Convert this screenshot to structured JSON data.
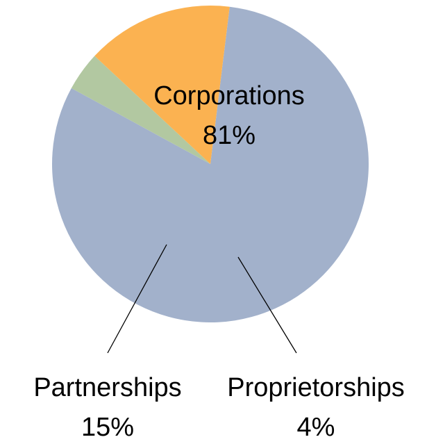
{
  "chart_data": {
    "type": "pie",
    "slices": [
      {
        "label": "Corporations",
        "value": 81,
        "pct_label": "81%",
        "color": "#a2b1cb"
      },
      {
        "label": "Proprietorships",
        "value": 4,
        "pct_label": "4%",
        "color": "#b2c8a1"
      },
      {
        "label": "Partnerships",
        "value": 15,
        "pct_label": "15%",
        "color": "#fbb251"
      }
    ],
    "start_angle_deg": -83,
    "direction": "clockwise",
    "legend": "none",
    "labels": "outside with leader lines (Corporations inside)"
  }
}
